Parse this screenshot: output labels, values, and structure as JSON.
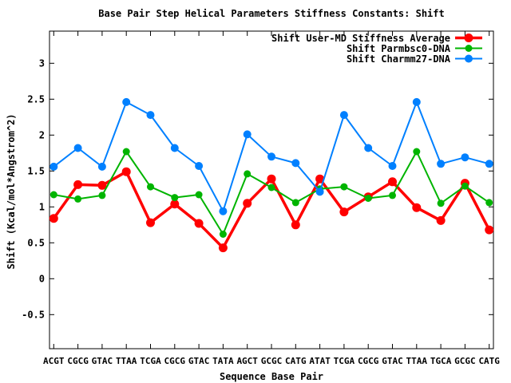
{
  "page": {
    "background": "#ffffff"
  },
  "chart_data": {
    "type": "line",
    "title": "Base Pair Step Helical Parameters Stiffness Constants: Shift",
    "xlabel": "Sequence Base Pair",
    "ylabel": "Shift (Kcal/mol*Angstrom^2)",
    "categories": [
      "ACGT",
      "CGCG",
      "GTAC",
      "TTAA",
      "TCGA",
      "CGCG",
      "GTAC",
      "TATA",
      "AGCT",
      "GCGC",
      "CATG",
      "ATAT",
      "TCGA",
      "CGCG",
      "GTAC",
      "TTAA",
      "TGCA",
      "GCGC",
      "CATG"
    ],
    "series": [
      {
        "name": "Shift User-MD Stiffness Average",
        "color": "#ff0000",
        "values": [
          0.84,
          1.31,
          1.3,
          1.49,
          0.78,
          1.04,
          0.77,
          0.43,
          1.05,
          1.39,
          0.75,
          1.39,
          0.93,
          1.14,
          1.35,
          0.99,
          0.81,
          1.33,
          0.68
        ]
      },
      {
        "name": "Shift Parmbsc0-DNA",
        "color": "#00b400",
        "values": [
          1.17,
          1.11,
          1.16,
          1.77,
          1.28,
          1.13,
          1.17,
          0.62,
          1.46,
          1.27,
          1.06,
          1.25,
          1.28,
          1.12,
          1.16,
          1.77,
          1.05,
          1.29,
          1.06
        ]
      },
      {
        "name": "Shift Charmm27-DNA",
        "color": "#0080ff",
        "values": [
          1.56,
          1.82,
          1.56,
          2.46,
          2.28,
          1.82,
          1.57,
          0.94,
          2.01,
          1.7,
          1.61,
          1.21,
          2.28,
          1.82,
          1.57,
          2.46,
          1.6,
          1.69,
          1.6
        ]
      }
    ],
    "y_ticks": {
      "values": [
        -0.5,
        0,
        0.5,
        1,
        1.5,
        2,
        2.5,
        3
      ],
      "labels": [
        "-0.5",
        "0",
        "0.5",
        "1",
        "1.5",
        "2",
        "2.5",
        "3"
      ]
    },
    "ylim": [
      -0.97,
      3.45
    ],
    "grid": false,
    "legend_position": "top-right-inside",
    "axis_color": "#000000",
    "text_color": "#000000"
  }
}
